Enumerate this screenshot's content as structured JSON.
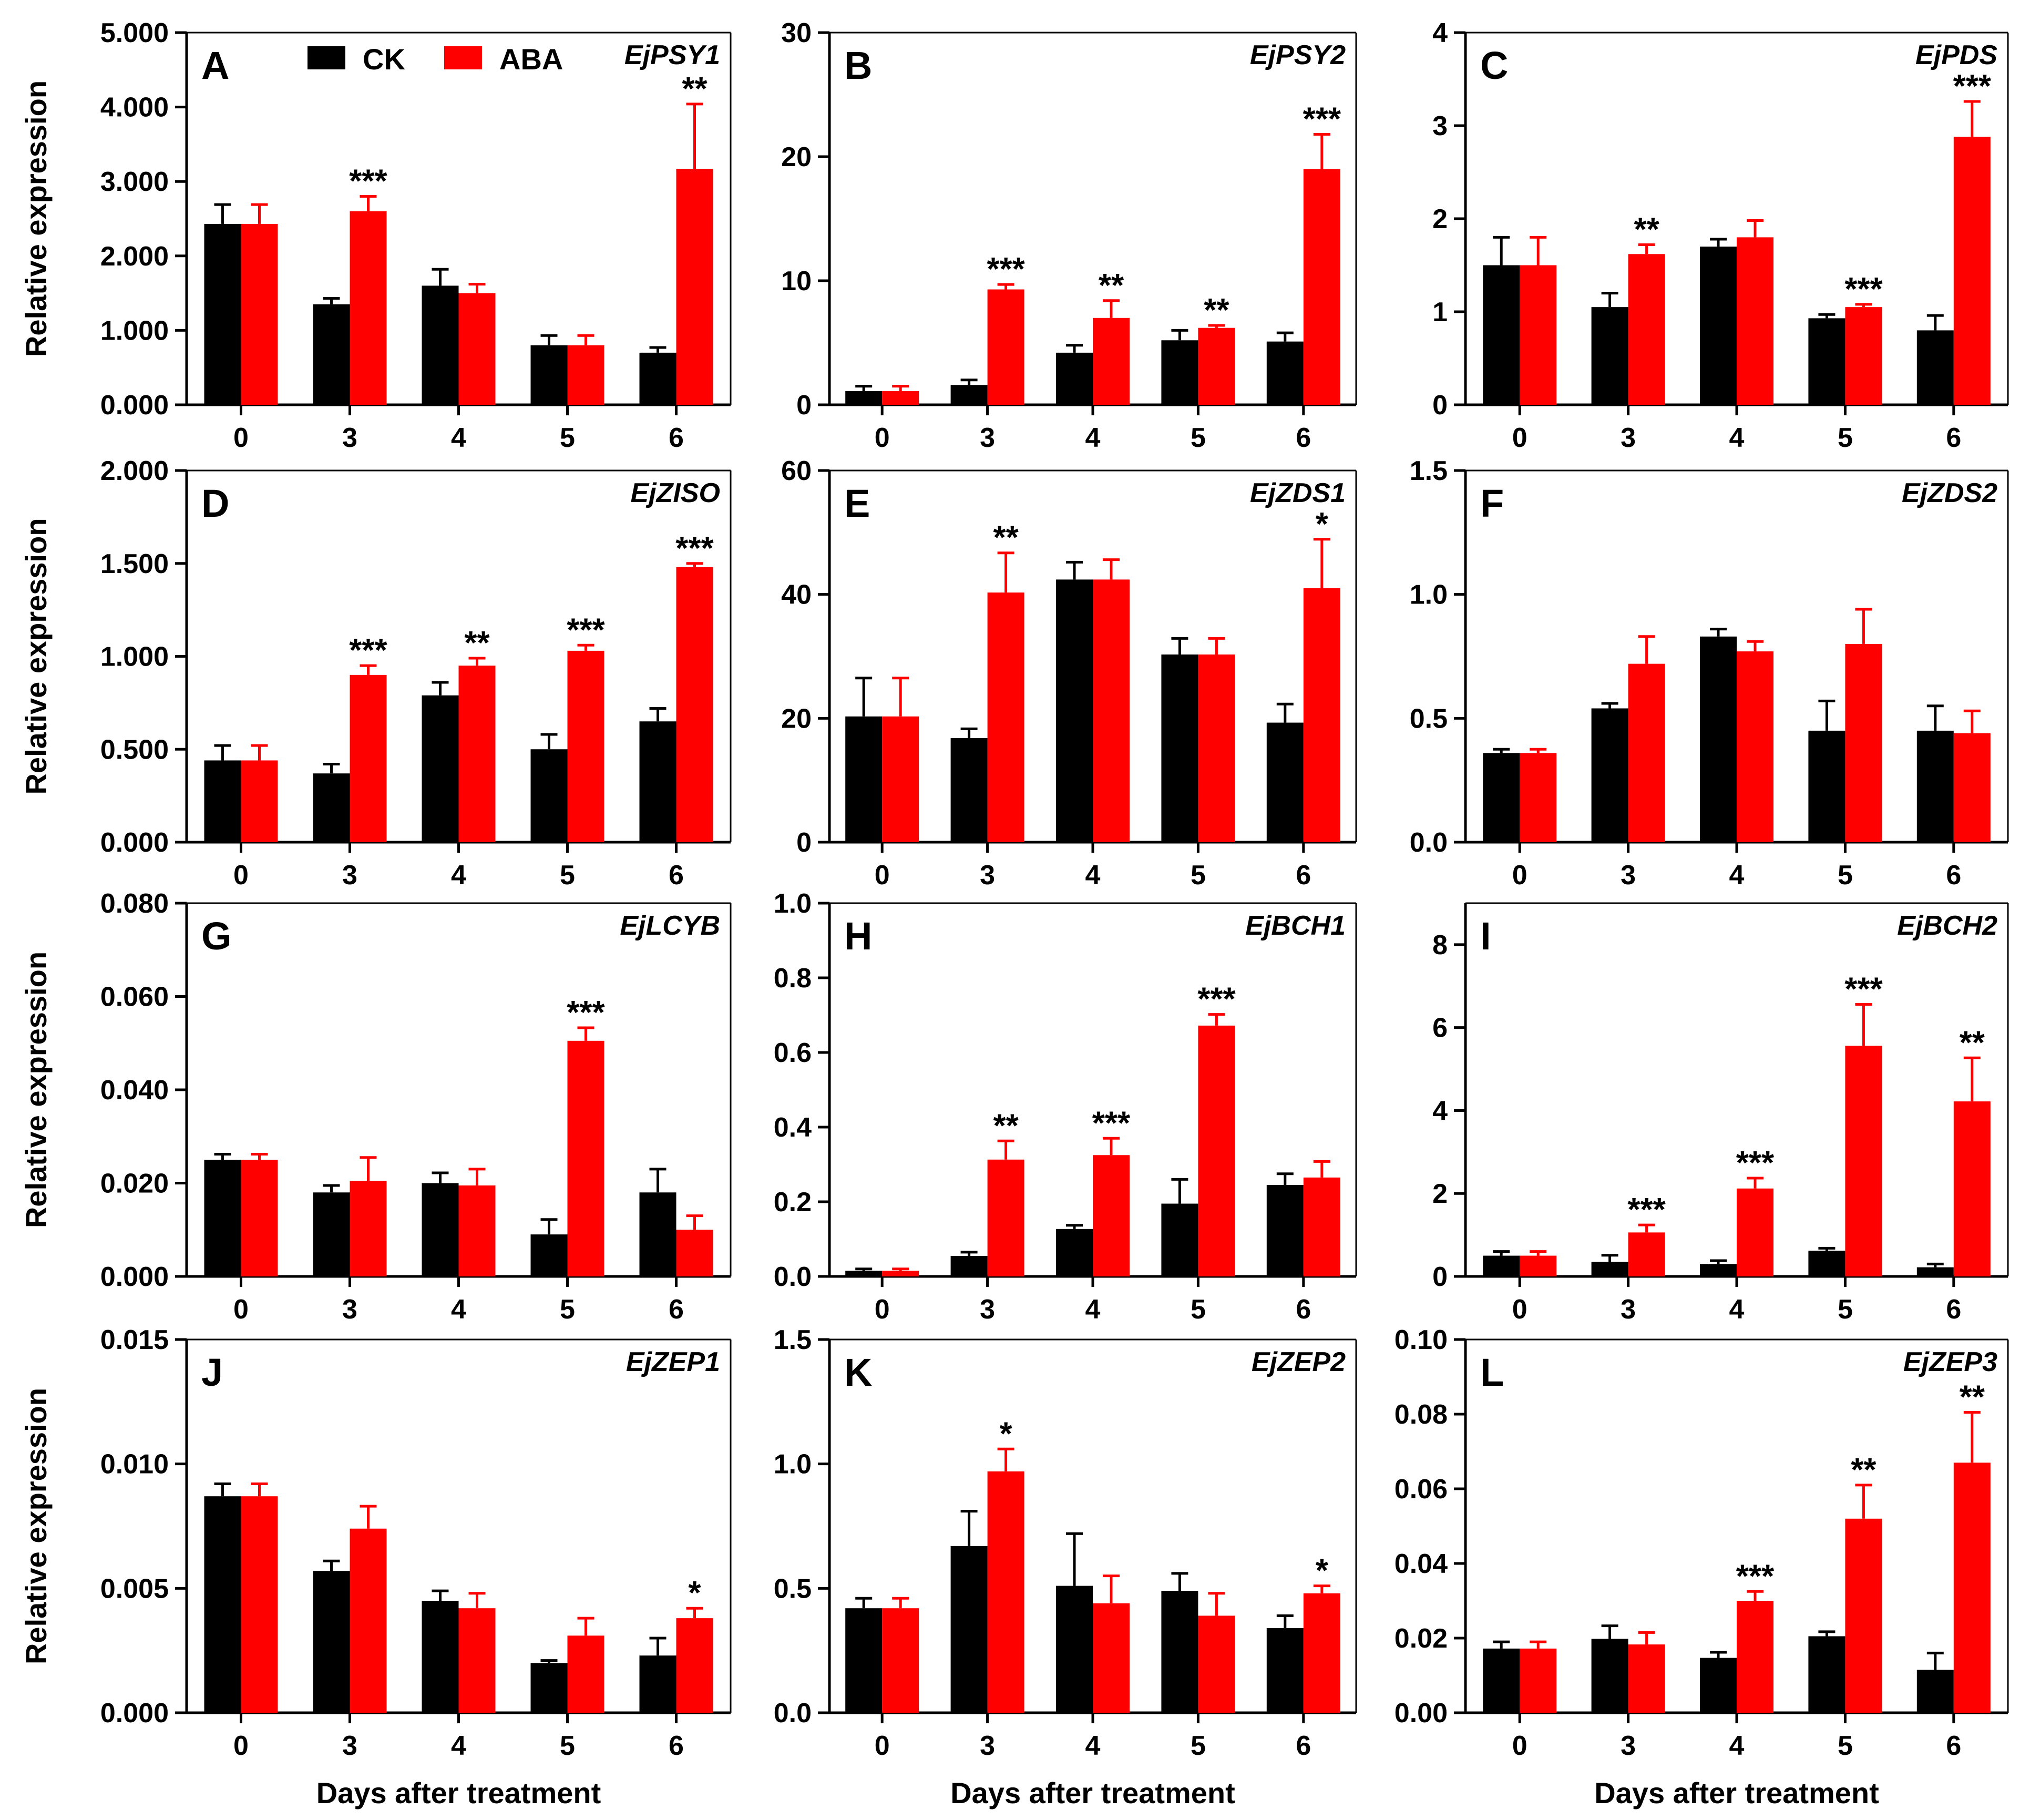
{
  "legend": {
    "ck_label": "CK",
    "aba_label": "ABA"
  },
  "colors": {
    "ck": "#000000",
    "aba": "#ff0000"
  },
  "chart_data": [
    {
      "type": "bar",
      "panel": "A",
      "title": "EjPSY1",
      "categories": [
        "0",
        "3",
        "4",
        "5",
        "6"
      ],
      "ylabel": "Relative expression",
      "xlabel": "",
      "ylim": [
        0,
        5
      ],
      "yticks": [
        "0.000",
        "1.000",
        "2.000",
        "3.000",
        "4.000",
        "5.000"
      ],
      "series": [
        {
          "name": "CK",
          "values": [
            2.43,
            1.35,
            1.6,
            0.8,
            0.7
          ],
          "errors": [
            0.26,
            0.08,
            0.22,
            0.13,
            0.07
          ]
        },
        {
          "name": "ABA",
          "values": [
            2.43,
            2.6,
            1.5,
            0.8,
            3.17
          ],
          "errors": [
            0.26,
            0.2,
            0.12,
            0.13,
            0.87
          ]
        }
      ],
      "significance": [
        "",
        "***",
        "",
        "",
        "**"
      ]
    },
    {
      "type": "bar",
      "panel": "B",
      "title": "EjPSY2",
      "categories": [
        "0",
        "3",
        "4",
        "5",
        "6"
      ],
      "ylabel": "",
      "xlabel": "",
      "ylim": [
        0,
        30
      ],
      "yticks": [
        "0",
        "10",
        "20",
        "30"
      ],
      "series": [
        {
          "name": "CK",
          "values": [
            1.1,
            1.6,
            4.2,
            5.2,
            5.1
          ],
          "errors": [
            0.4,
            0.4,
            0.6,
            0.8,
            0.7
          ]
        },
        {
          "name": "ABA",
          "values": [
            1.1,
            9.3,
            7.0,
            6.2,
            19.0
          ],
          "errors": [
            0.4,
            0.4,
            1.4,
            0.2,
            2.8
          ]
        }
      ],
      "significance": [
        "",
        "***",
        "**",
        "**",
        "***"
      ]
    },
    {
      "type": "bar",
      "panel": "C",
      "title": "EjPDS",
      "categories": [
        "0",
        "3",
        "4",
        "5",
        "6"
      ],
      "ylabel": "",
      "xlabel": "",
      "ylim": [
        0,
        4
      ],
      "yticks": [
        "0",
        "1",
        "2",
        "3",
        "4"
      ],
      "series": [
        {
          "name": "CK",
          "values": [
            1.5,
            1.05,
            1.7,
            0.93,
            0.8
          ],
          "errors": [
            0.3,
            0.15,
            0.08,
            0.04,
            0.16
          ]
        },
        {
          "name": "ABA",
          "values": [
            1.5,
            1.62,
            1.8,
            1.05,
            2.88
          ],
          "errors": [
            0.3,
            0.1,
            0.18,
            0.03,
            0.38
          ]
        }
      ],
      "significance": [
        "",
        "**",
        "",
        "***",
        "***"
      ]
    },
    {
      "type": "bar",
      "panel": "D",
      "title": "EjZISO",
      "categories": [
        "0",
        "3",
        "4",
        "5",
        "6"
      ],
      "ylabel": "Relative expression",
      "xlabel": "",
      "ylim": [
        0,
        2
      ],
      "yticks": [
        "0.000",
        "0.500",
        "1.000",
        "1.500",
        "2.000"
      ],
      "series": [
        {
          "name": "CK",
          "values": [
            0.44,
            0.37,
            0.79,
            0.5,
            0.65
          ],
          "errors": [
            0.08,
            0.05,
            0.07,
            0.08,
            0.07
          ]
        },
        {
          "name": "ABA",
          "values": [
            0.44,
            0.9,
            0.95,
            1.03,
            1.48
          ],
          "errors": [
            0.08,
            0.05,
            0.04,
            0.03,
            0.02
          ]
        }
      ],
      "significance": [
        "",
        "***",
        "**",
        "***",
        "***"
      ]
    },
    {
      "type": "bar",
      "panel": "E",
      "title": "EjZDS1",
      "categories": [
        "0",
        "3",
        "4",
        "5",
        "6"
      ],
      "ylabel": "",
      "xlabel": "",
      "ylim": [
        0,
        60
      ],
      "yticks": [
        "0",
        "20",
        "40",
        "60"
      ],
      "series": [
        {
          "name": "CK",
          "values": [
            20.3,
            16.8,
            42.4,
            30.3,
            19.3
          ],
          "errors": [
            6.2,
            1.5,
            2.8,
            2.6,
            3.0
          ]
        },
        {
          "name": "ABA",
          "values": [
            20.3,
            40.3,
            42.4,
            30.3,
            41.0
          ],
          "errors": [
            6.2,
            6.4,
            3.2,
            2.6,
            7.9
          ]
        }
      ],
      "significance": [
        "",
        "**",
        "",
        "",
        "*"
      ]
    },
    {
      "type": "bar",
      "panel": "F",
      "title": "EjZDS2",
      "categories": [
        "0",
        "3",
        "4",
        "5",
        "6"
      ],
      "ylabel": "",
      "xlabel": "",
      "ylim": [
        0,
        1.5
      ],
      "yticks": [
        "0.0",
        "0.5",
        "1.0",
        "1.5"
      ],
      "series": [
        {
          "name": "CK",
          "values": [
            0.36,
            0.54,
            0.83,
            0.45,
            0.45
          ],
          "errors": [
            0.015,
            0.02,
            0.03,
            0.12,
            0.1
          ]
        },
        {
          "name": "ABA",
          "values": [
            0.36,
            0.72,
            0.77,
            0.8,
            0.44
          ],
          "errors": [
            0.015,
            0.11,
            0.04,
            0.14,
            0.09
          ]
        }
      ],
      "significance": [
        "",
        "",
        "",
        "",
        ""
      ]
    },
    {
      "type": "bar",
      "panel": "G",
      "title": "EjLCYB",
      "categories": [
        "0",
        "3",
        "4",
        "5",
        "6"
      ],
      "ylabel": "Relative expression",
      "xlabel": "",
      "ylim": [
        0,
        0.08
      ],
      "yticks": [
        "0.000",
        "0.020",
        "0.040",
        "0.060",
        "0.080"
      ],
      "series": [
        {
          "name": "CK",
          "values": [
            0.025,
            0.018,
            0.02,
            0.009,
            0.018
          ],
          "errors": [
            0.0012,
            0.0015,
            0.0022,
            0.0032,
            0.005
          ]
        },
        {
          "name": "ABA",
          "values": [
            0.025,
            0.0205,
            0.0195,
            0.0505,
            0.01
          ],
          "errors": [
            0.0012,
            0.005,
            0.0035,
            0.0028,
            0.003
          ]
        }
      ],
      "significance": [
        "",
        "",
        "",
        "***",
        ""
      ]
    },
    {
      "type": "bar",
      "panel": "H",
      "title": "EjBCH1",
      "categories": [
        "0",
        "3",
        "4",
        "5",
        "6"
      ],
      "ylabel": "",
      "xlabel": "",
      "ylim": [
        0,
        1.0
      ],
      "yticks": [
        "0.0",
        "0.2",
        "0.4",
        "0.6",
        "0.8",
        "1.0"
      ],
      "series": [
        {
          "name": "CK",
          "values": [
            0.015,
            0.055,
            0.127,
            0.195,
            0.245
          ],
          "errors": [
            0.005,
            0.01,
            0.01,
            0.065,
            0.03
          ]
        },
        {
          "name": "ABA",
          "values": [
            0.015,
            0.313,
            0.325,
            0.672,
            0.265
          ],
          "errors": [
            0.005,
            0.05,
            0.045,
            0.03,
            0.043
          ]
        }
      ],
      "significance": [
        "",
        "**",
        "***",
        "***",
        ""
      ]
    },
    {
      "type": "bar",
      "panel": "I",
      "title": "EjBCH2",
      "categories": [
        "0",
        "3",
        "4",
        "5",
        "6"
      ],
      "ylabel": "",
      "xlabel": "",
      "ylim": [
        0,
        9
      ],
      "yticks": [
        "0",
        "2",
        "4",
        "6",
        "8"
      ],
      "series": [
        {
          "name": "CK",
          "values": [
            0.5,
            0.35,
            0.3,
            0.62,
            0.22
          ],
          "errors": [
            0.1,
            0.16,
            0.08,
            0.06,
            0.08
          ]
        },
        {
          "name": "ABA",
          "values": [
            0.5,
            1.06,
            2.12,
            5.56,
            4.22
          ],
          "errors": [
            0.1,
            0.18,
            0.25,
            1.0,
            1.05
          ]
        }
      ],
      "significance": [
        "",
        "***",
        "***",
        "***",
        "**"
      ]
    },
    {
      "type": "bar",
      "panel": "J",
      "title": "EjZEP1",
      "categories": [
        "0",
        "3",
        "4",
        "5",
        "6"
      ],
      "ylabel": "Relative expression",
      "xlabel": "Days after treatment",
      "ylim": [
        0,
        0.015
      ],
      "yticks": [
        "0.000",
        "0.005",
        "0.010",
        "0.015"
      ],
      "series": [
        {
          "name": "CK",
          "values": [
            0.0087,
            0.0057,
            0.0045,
            0.002,
            0.0023
          ],
          "errors": [
            0.0005,
            0.0004,
            0.0004,
            0.0001,
            0.0007
          ]
        },
        {
          "name": "ABA",
          "values": [
            0.0087,
            0.0074,
            0.0042,
            0.0031,
            0.0038
          ],
          "errors": [
            0.0005,
            0.0009,
            0.0006,
            0.0007,
            0.0004
          ]
        }
      ],
      "significance": [
        "",
        "",
        "",
        "",
        "*"
      ]
    },
    {
      "type": "bar",
      "panel": "K",
      "title": "EjZEP2",
      "categories": [
        "0",
        "3",
        "4",
        "5",
        "6"
      ],
      "ylabel": "",
      "xlabel": "Days after treatment",
      "ylim": [
        0,
        1.5
      ],
      "yticks": [
        "0.0",
        "0.5",
        "1.0",
        "1.5"
      ],
      "series": [
        {
          "name": "CK",
          "values": [
            0.42,
            0.67,
            0.51,
            0.49,
            0.34
          ],
          "errors": [
            0.04,
            0.14,
            0.21,
            0.07,
            0.05
          ]
        },
        {
          "name": "ABA",
          "values": [
            0.42,
            0.97,
            0.44,
            0.39,
            0.48
          ],
          "errors": [
            0.04,
            0.09,
            0.11,
            0.09,
            0.03
          ]
        }
      ],
      "significance": [
        "",
        "*",
        "",
        "",
        "*"
      ]
    },
    {
      "type": "bar",
      "panel": "L",
      "title": "EjZEP3",
      "categories": [
        "0",
        "3",
        "4",
        "5",
        "6"
      ],
      "ylabel": "",
      "xlabel": "Days after treatment",
      "ylim": [
        0,
        0.1
      ],
      "yticks": [
        "0.00",
        "0.02",
        "0.04",
        "0.06",
        "0.08",
        "0.10"
      ],
      "series": [
        {
          "name": "CK",
          "values": [
            0.0172,
            0.0198,
            0.0147,
            0.0205,
            0.0115
          ],
          "errors": [
            0.0018,
            0.0035,
            0.0015,
            0.0012,
            0.0045
          ]
        },
        {
          "name": "ABA",
          "values": [
            0.0172,
            0.0183,
            0.03,
            0.052,
            0.067
          ],
          "errors": [
            0.0018,
            0.0032,
            0.0025,
            0.009,
            0.0135
          ]
        }
      ],
      "significance": [
        "",
        "",
        "***",
        "**",
        "**"
      ]
    }
  ]
}
